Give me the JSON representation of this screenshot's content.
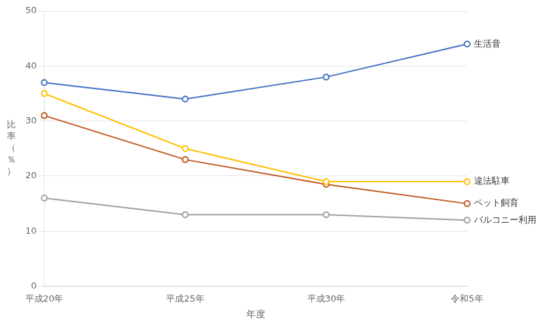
{
  "chart_data": {
    "type": "line",
    "categories": [
      "平成20年",
      "平成25年",
      "平成30年",
      "令和5年"
    ],
    "series": [
      {
        "name": "生活音",
        "color": "#4472C4",
        "values": [
          37.0,
          34.0,
          38.0,
          44.0
        ]
      },
      {
        "name": "違法駐車",
        "color": "#FFC000",
        "values": [
          35.0,
          25.0,
          19.0,
          19.0
        ]
      },
      {
        "name": "ペット飼育",
        "color": "#C05A1F",
        "values": [
          31.0,
          23.0,
          18.5,
          15.0
        ]
      },
      {
        "name": "バルコニー利用",
        "color": "#A0A0A0",
        "values": [
          16.0,
          13.0,
          13.0,
          12.0
        ]
      }
    ],
    "xlabel": "年度",
    "ylabel": "比\n率\n（\n％\n）",
    "ylim": [
      0,
      50
    ],
    "yticks": [
      0,
      10,
      20,
      30,
      40,
      50
    ],
    "grid": true,
    "marker": "circle"
  }
}
